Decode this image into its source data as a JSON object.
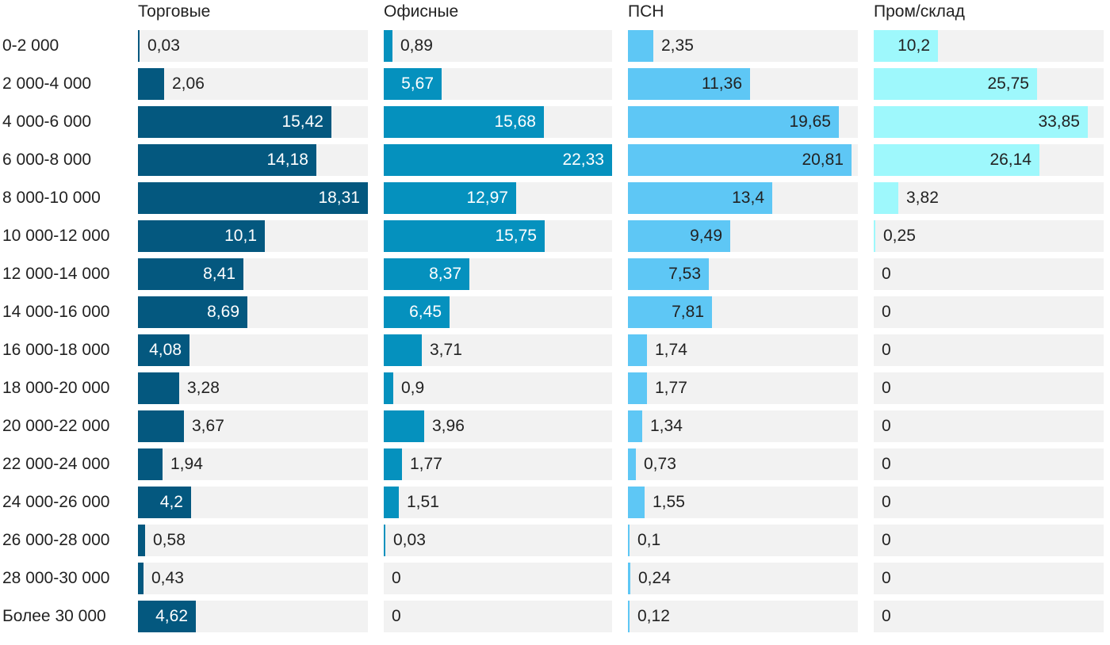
{
  "chart_data": {
    "type": "bar",
    "orientation": "horizontal",
    "layout": "small-multiples",
    "categories": [
      "0-2 000",
      "2 000-4 000",
      "4 000-6 000",
      "6 000-8 000",
      "8 000-10 000",
      "10 000-12 000",
      "12 000-14 000",
      "14 000-16 000",
      "16 000-18 000",
      "18 000-20 000",
      "20 000-22 000",
      "22 000-24 000",
      "24 000-26 000",
      "26 000-28 000",
      "28 000-30 000",
      "Более 30 000"
    ],
    "series": [
      {
        "name": "Торговые",
        "color": "#04587f",
        "label_text_color": "#ffffff",
        "values": [
          0.03,
          2.06,
          15.42,
          14.18,
          18.31,
          10.1,
          8.41,
          8.69,
          4.08,
          3.28,
          3.67,
          1.94,
          4.2,
          0.58,
          0.43,
          4.62
        ],
        "labels": [
          "0,03",
          "2,06",
          "15,42",
          "14,18",
          "18,31",
          "10,1",
          "8,41",
          "8,69",
          "4,08",
          "3,28",
          "3,67",
          "1,94",
          "4,2",
          "0,58",
          "0,43",
          "4,62"
        ],
        "xlim": [
          0,
          18.31
        ]
      },
      {
        "name": "Офисные",
        "color": "#0591be",
        "label_text_color": "#ffffff",
        "values": [
          0.89,
          5.67,
          15.68,
          22.33,
          12.97,
          15.75,
          8.37,
          6.45,
          3.71,
          0.9,
          3.96,
          1.77,
          1.51,
          0.03,
          0,
          0
        ],
        "labels": [
          "0,89",
          "5,67",
          "15,68",
          "22,33",
          "12,97",
          "15,75",
          "8,37",
          "6,45",
          "3,71",
          "0,9",
          "3,96",
          "1,77",
          "1,51",
          "0,03",
          "0",
          "0"
        ],
        "xlim": [
          0,
          22.33
        ]
      },
      {
        "name": "ПСН",
        "color": "#5ec7f5",
        "label_text_color": "#222222",
        "values": [
          2.35,
          11.36,
          19.65,
          20.81,
          13.4,
          9.49,
          7.53,
          7.81,
          1.74,
          1.77,
          1.34,
          0.73,
          1.55,
          0.1,
          0.24,
          0.12
        ],
        "labels": [
          "2,35",
          "11,36",
          "19,65",
          "20,81",
          "13,4",
          "9,49",
          "7,53",
          "7,81",
          "1,74",
          "1,77",
          "1,34",
          "0,73",
          "1,55",
          "0,1",
          "0,24",
          "0,12"
        ],
        "xlim": [
          0,
          21.4
        ]
      },
      {
        "name": "Пром/склад",
        "color": "#9ef8fc",
        "label_text_color": "#222222",
        "values": [
          10.2,
          25.75,
          33.85,
          26.14,
          3.82,
          0.25,
          0,
          0,
          0,
          0,
          0,
          0,
          0,
          0,
          0,
          0
        ],
        "labels": [
          "10,2",
          "25,75",
          "33,85",
          "26,14",
          "3,82",
          "0,25",
          "0",
          "0",
          "0",
          "0",
          "0",
          "0",
          "0",
          "0",
          "0",
          "0"
        ],
        "xlim": [
          0,
          36.3
        ]
      }
    ],
    "title": "",
    "xlabel": "",
    "ylabel": "",
    "grid": false,
    "legend": "none"
  }
}
